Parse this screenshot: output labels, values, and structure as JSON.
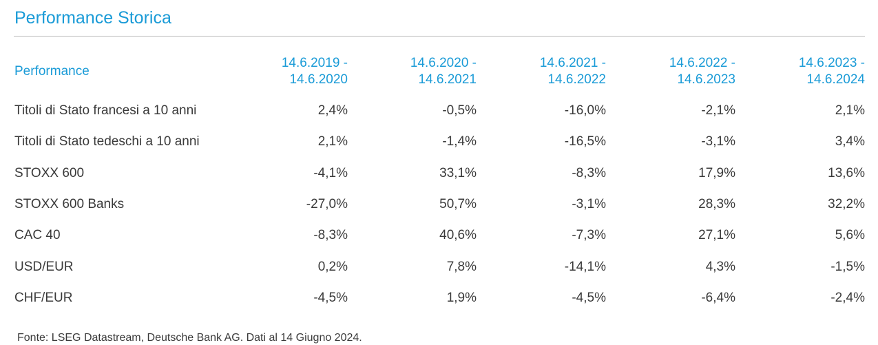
{
  "title": "Performance Storica",
  "table": {
    "header_label": "Performance",
    "periods": [
      [
        "14.6.2019 -",
        "14.6.2020"
      ],
      [
        "14.6.2020 -",
        "14.6.2021"
      ],
      [
        "14.6.2021 -",
        "14.6.2022"
      ],
      [
        "14.6.2022 -",
        "14.6.2023"
      ],
      [
        "14.6.2023 -",
        "14.6.2024"
      ]
    ],
    "rows": [
      {
        "label": "Titoli di Stato francesi a 10 anni",
        "values": [
          "2,4%",
          "-0,5%",
          "-16,0%",
          "-2,1%",
          "2,1%"
        ]
      },
      {
        "label": "Titoli di Stato tedeschi a 10 anni",
        "values": [
          "2,1%",
          "-1,4%",
          "-16,5%",
          "-3,1%",
          "3,4%"
        ]
      },
      {
        "label": "STOXX 600",
        "values": [
          "-4,1%",
          "33,1%",
          "-8,3%",
          "17,9%",
          "13,6%"
        ]
      },
      {
        "label": "STOXX 600 Banks",
        "values": [
          "-27,0%",
          "50,7%",
          "-3,1%",
          "28,3%",
          "32,2%"
        ]
      },
      {
        "label": "CAC 40",
        "values": [
          "-8,3%",
          "40,6%",
          "-7,3%",
          "27,1%",
          "5,6%"
        ]
      },
      {
        "label": "USD/EUR",
        "values": [
          "0,2%",
          "7,8%",
          "-14,1%",
          "4,3%",
          "-1,5%"
        ]
      },
      {
        "label": "CHF/EUR",
        "values": [
          "-4,5%",
          "1,9%",
          "-4,5%",
          "-6,4%",
          "-2,4%"
        ]
      }
    ]
  },
  "source": "Fonte: LSEG Datastream, Deutsche Bank AG. Dati al 14 Giugno 2024.",
  "colors": {
    "accent": "#1a9bd7",
    "text": "#3a3a3a",
    "rule": "#b8b8b8"
  }
}
